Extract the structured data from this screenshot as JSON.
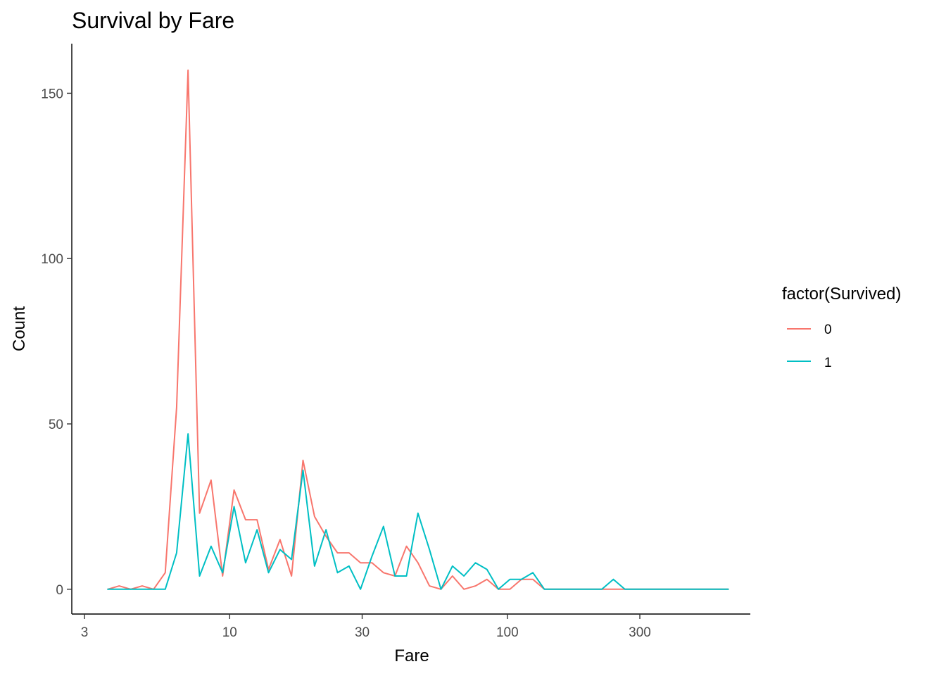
{
  "chart_data": {
    "type": "line",
    "title": "Survival by Fare",
    "xlabel": "Fare",
    "ylabel": "Count",
    "x_scale": "log10",
    "xlim": [
      2.7,
      750
    ],
    "ylim": [
      -7.5,
      165
    ],
    "x_ticks": [
      3,
      10,
      30,
      100,
      300
    ],
    "x_tick_labels": [
      "3",
      "10",
      "30",
      "100",
      "300"
    ],
    "y_ticks": [
      0,
      50,
      100,
      150
    ],
    "y_tick_labels": [
      "0",
      "50",
      "100",
      "150"
    ],
    "grid": false,
    "legend": {
      "title": "factor(Survived)",
      "position": "right"
    },
    "x": [
      3.64,
      4.0,
      4.4,
      4.84,
      5.32,
      5.86,
      6.44,
      7.08,
      7.79,
      8.57,
      9.43,
      10.37,
      11.41,
      12.55,
      13.8,
      15.18,
      16.7,
      18.37,
      20.21,
      22.23,
      24.45,
      26.9,
      29.59,
      32.55,
      35.8,
      39.38,
      43.32,
      47.65,
      52.42,
      57.66,
      63.43,
      69.77,
      76.75,
      84.42,
      92.87,
      102.15,
      112.37,
      123.6,
      135.96,
      149.56,
      164.52,
      180.97,
      199.07,
      218.97,
      240.87,
      264.96,
      291.45,
      320.6,
      352.66,
      387.92,
      426.72,
      469.39,
      516.33,
      567.96,
      624.76
    ],
    "series": [
      {
        "name": "0",
        "color": "#F8766D",
        "values": [
          0,
          1,
          0,
          1,
          0,
          5,
          55,
          157,
          23,
          33,
          4,
          30,
          21,
          21,
          6,
          15,
          4,
          39,
          22,
          16,
          11,
          11,
          8,
          8,
          5,
          4,
          13,
          8,
          1,
          0,
          4,
          0,
          1,
          3,
          0,
          0,
          3,
          3,
          0,
          0,
          0,
          0,
          0,
          0,
          0,
          0,
          0,
          0,
          0,
          0,
          0,
          0,
          0,
          0,
          0
        ]
      },
      {
        "name": "1",
        "color": "#00BFC4",
        "values": [
          0,
          0,
          0,
          0,
          0,
          0,
          11,
          47,
          4,
          13,
          5,
          25,
          8,
          18,
          5,
          12,
          9,
          36,
          7,
          18,
          5,
          7,
          0,
          10,
          19,
          4,
          4,
          23,
          12,
          0,
          7,
          4,
          8,
          6,
          0,
          3,
          3,
          5,
          0,
          0,
          0,
          0,
          0,
          0,
          3,
          0,
          0,
          0,
          0,
          0,
          0,
          0,
          0,
          0,
          0
        ]
      }
    ]
  }
}
